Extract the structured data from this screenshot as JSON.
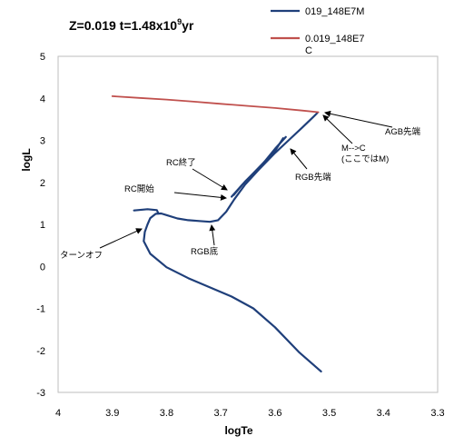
{
  "chart_data": {
    "type": "line",
    "title_parts": [
      "Z=0.019  t=1.48x10",
      "9",
      "yr"
    ],
    "xlabel": "logTe",
    "ylabel": "logL",
    "xlim": [
      4.0,
      3.3
    ],
    "ylim": [
      -3,
      5
    ],
    "x_ticks": [
      "4",
      "3.9",
      "3.8",
      "3.7",
      "3.6",
      "3.5",
      "3.4",
      "3.3"
    ],
    "y_ticks": [
      "5",
      "4",
      "3",
      "2",
      "1",
      "0",
      "-1",
      "-2",
      "-3"
    ],
    "legend_placement": "top-right",
    "series": [
      {
        "name": "019_148E7M",
        "color": "#1f3f7a",
        "segments": [
          [
            [
              3.515,
              -2.5
            ],
            [
              3.555,
              -2.05
            ],
            [
              3.6,
              -1.45
            ],
            [
              3.64,
              -1.0
            ],
            [
              3.68,
              -0.72
            ],
            [
              3.72,
              -0.5
            ],
            [
              3.76,
              -0.28
            ],
            [
              3.8,
              -0.02
            ],
            [
              3.83,
              0.3
            ],
            [
              3.842,
              0.6
            ],
            [
              3.84,
              0.82
            ],
            [
              3.835,
              1.0
            ],
            [
              3.83,
              1.15
            ],
            [
              3.82,
              1.25
            ],
            [
              3.81,
              1.26
            ],
            [
              3.8,
              1.22
            ],
            [
              3.78,
              1.14
            ],
            [
              3.76,
              1.1
            ],
            [
              3.74,
              1.08
            ],
            [
              3.72,
              1.06
            ],
            [
              3.705,
              1.1
            ],
            [
              3.69,
              1.3
            ],
            [
              3.675,
              1.6
            ],
            [
              3.655,
              1.95
            ],
            [
              3.63,
              2.3
            ],
            [
              3.6,
              2.7
            ],
            [
              3.575,
              3.0
            ],
            [
              3.55,
              3.3
            ],
            [
              3.53,
              3.55
            ],
            [
              3.522,
              3.65
            ]
          ],
          [
            [
              3.815,
              1.26
            ],
            [
              3.818,
              1.34
            ],
            [
              3.835,
              1.36
            ],
            [
              3.86,
              1.33
            ]
          ],
          [
            [
              3.68,
              1.66
            ],
            [
              3.66,
              1.95
            ],
            [
              3.63,
              2.35
            ],
            [
              3.6,
              2.75
            ],
            [
              3.585,
              3.05
            ]
          ],
          [
            [
              3.676,
              1.7
            ],
            [
              3.655,
              2.02
            ],
            [
              3.625,
              2.4
            ],
            [
              3.6,
              2.8
            ],
            [
              3.58,
              3.08
            ]
          ]
        ]
      },
      {
        "name": "0.019_148E7",
        "name_line2": "C",
        "color": "#c0504d",
        "segments": [
          [
            [
              3.9,
              4.05
            ],
            [
              3.85,
              4.01
            ],
            [
              3.8,
              3.97
            ],
            [
              3.75,
              3.92
            ],
            [
              3.7,
              3.87
            ],
            [
              3.65,
              3.82
            ],
            [
              3.6,
              3.77
            ],
            [
              3.55,
              3.71
            ],
            [
              3.52,
              3.67
            ]
          ]
        ]
      }
    ],
    "annotations": [
      {
        "lines": [
          "AGB先端"
        ],
        "target": [
          3.52,
          3.67
        ]
      },
      {
        "lines": [
          "M-->C",
          "(ここではM)"
        ],
        "target": [
          3.52,
          3.64
        ]
      },
      {
        "lines": [
          "RGB先端"
        ],
        "target": [
          3.585,
          3.0
        ]
      },
      {
        "lines": [
          "RC終了"
        ],
        "target": [
          3.68,
          1.82
        ]
      },
      {
        "lines": [
          "RC開始"
        ],
        "target": [
          3.678,
          1.66
        ]
      },
      {
        "lines": [
          "RGB底"
        ],
        "target": [
          3.715,
          1.06
        ]
      },
      {
        "lines": [
          "ターンオフ"
        ],
        "target": [
          3.84,
          0.9
        ]
      }
    ]
  }
}
